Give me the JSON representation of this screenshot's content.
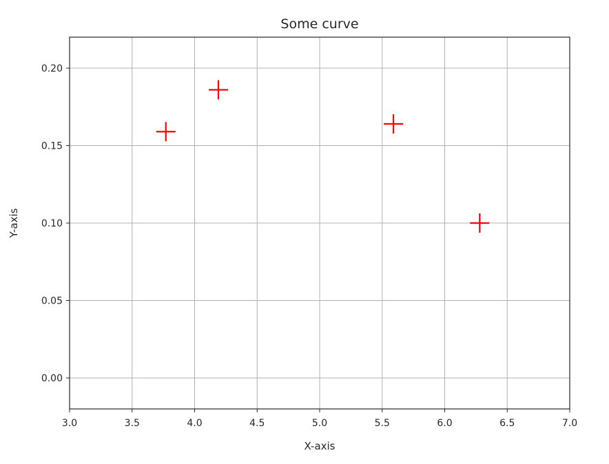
{
  "chart_data": {
    "type": "scatter",
    "title": "Some curve",
    "xlabel": "X-axis",
    "ylabel": "Y-axis",
    "xlim": [
      3.0,
      7.0
    ],
    "ylim": [
      -0.02,
      0.22
    ],
    "xticks": [
      "3.0",
      "3.5",
      "4.0",
      "4.5",
      "5.0",
      "5.5",
      "6.0",
      "6.5",
      "7.0"
    ],
    "yticks": [
      "0.00",
      "0.05",
      "0.10",
      "0.15",
      "0.20"
    ],
    "grid": true,
    "marker": "plus",
    "marker_color": "#ff0000",
    "series": [
      {
        "x": [
          3.77,
          4.19,
          5.59,
          6.28
        ],
        "y": [
          0.159,
          0.186,
          0.164,
          0.1
        ]
      }
    ]
  }
}
